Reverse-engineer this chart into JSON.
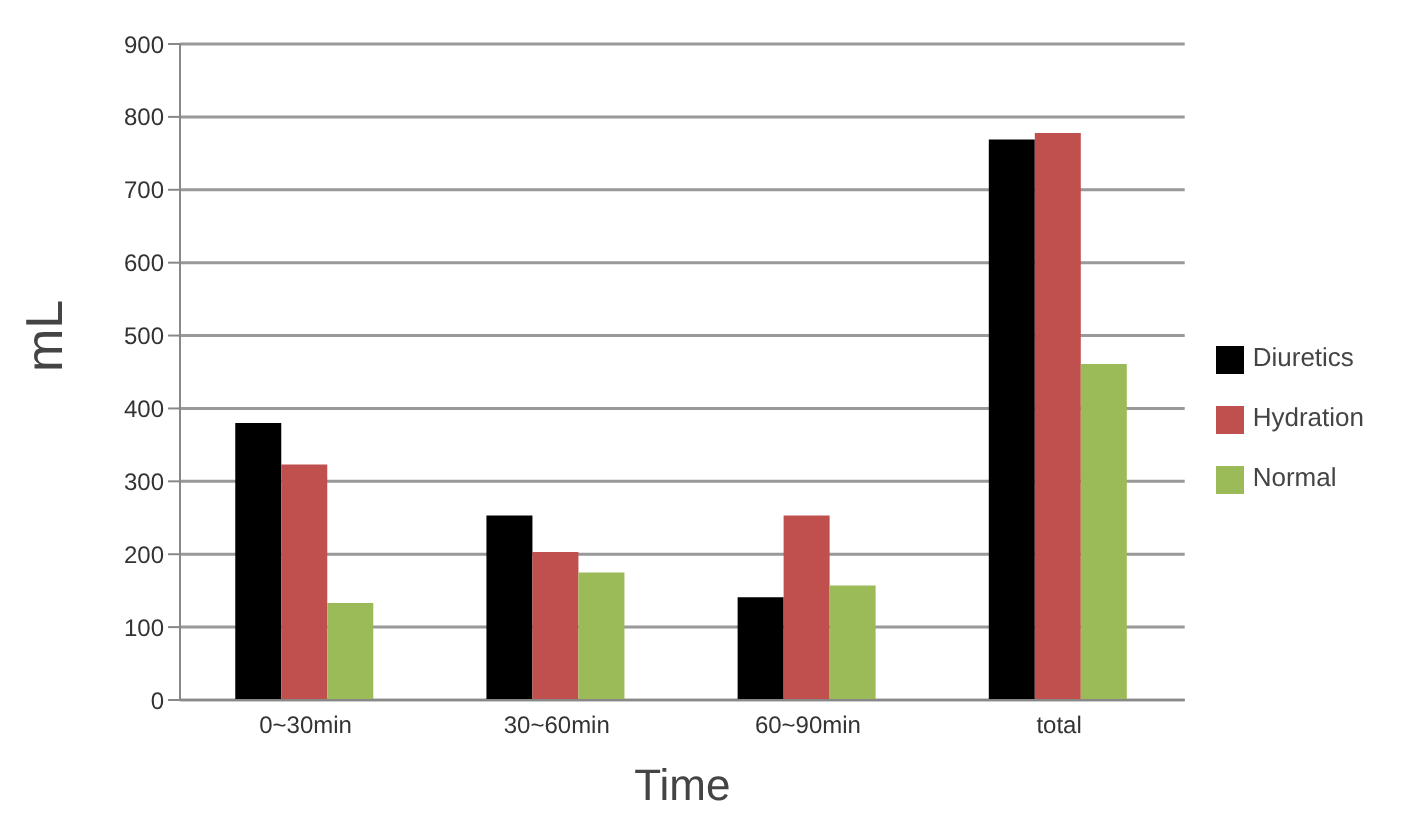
{
  "chart_data": {
    "type": "bar",
    "xlabel": "Time",
    "ylabel": "mL",
    "categories": [
      "0~30min",
      "30~60min",
      "60~90min",
      "total"
    ],
    "series": [
      {
        "name": "Diuretics",
        "color": "#000000",
        "values": [
          380,
          253,
          141,
          769
        ]
      },
      {
        "name": "Hydration",
        "color": "#c0504d",
        "values": [
          323,
          203,
          253,
          778
        ]
      },
      {
        "name": "Normal",
        "color": "#9bbb59",
        "values": [
          133,
          175,
          157,
          461
        ]
      }
    ],
    "ylim": [
      0,
      900
    ],
    "yticks": [
      0,
      100,
      200,
      300,
      400,
      500,
      600,
      700,
      800,
      900
    ],
    "grid": "y",
    "legend": "right"
  }
}
